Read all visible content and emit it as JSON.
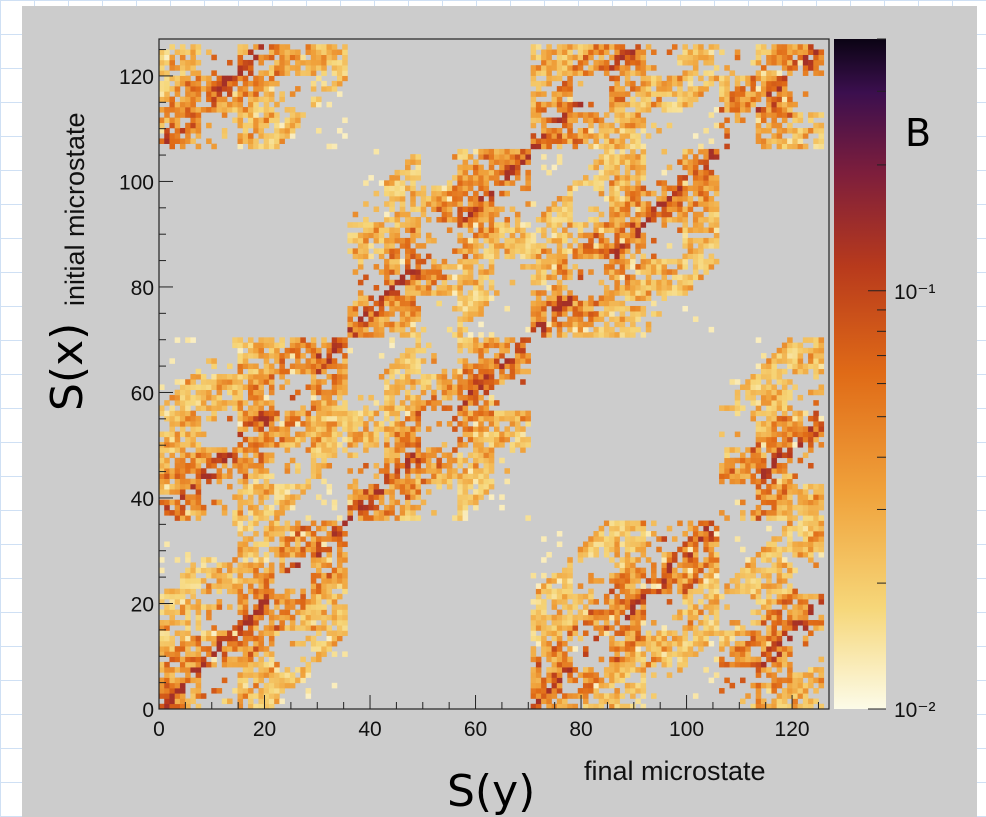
{
  "chart_data": {
    "type": "heatmap",
    "title": "",
    "xlabel": "final microstate",
    "ylabel": "initial microstate",
    "x_annotation": "S(y)",
    "y_annotation": "S(x)",
    "colorbar_annotation": "B",
    "xlim": [
      0,
      127
    ],
    "ylim": [
      0,
      127
    ],
    "x_ticks": [
      "0",
      "20",
      "40",
      "60",
      "80",
      "100",
      "120"
    ],
    "y_ticks": [
      "0",
      "20",
      "40",
      "60",
      "80",
      "100",
      "120"
    ],
    "colorbar": {
      "scale": "log",
      "range": [
        0.01,
        0.4
      ],
      "tick_labels": [
        "10⁻¹",
        "10⁻²"
      ],
      "tick_values": [
        0.1,
        0.01
      ],
      "colormap": "inferno-reversed"
    },
    "bins": 128,
    "grid": false,
    "description_of_data": "sparse self-similar fractal transition matrix; nonzero entries cluster in fan-shaped blocks repeating at scales of 5, 35 and 71 states"
  },
  "colors": {
    "background": "#cccccc",
    "colormap_stops": [
      "#fcfbe8",
      "#f6d77a",
      "#f0a33c",
      "#e06b17",
      "#b83a1c",
      "#7d1e3c",
      "#3b0f4e",
      "#0b0414"
    ]
  }
}
